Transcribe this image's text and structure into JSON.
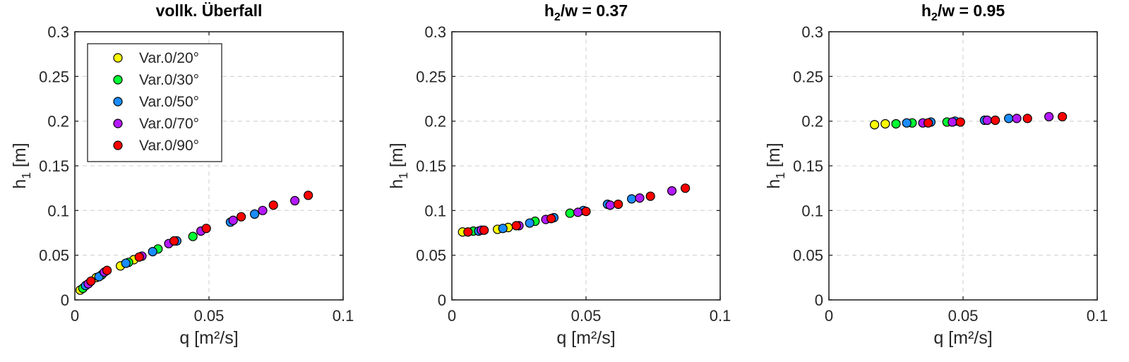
{
  "colors": {
    "Var.0/20°": "#ffff00",
    "Var.0/30°": "#00ff33",
    "Var.0/50°": "#1a8cff",
    "Var.0/70°": "#b319ff",
    "Var.0/90°": "#ff0000"
  },
  "chart_data": [
    {
      "type": "scatter",
      "title": "vollk. Überfall",
      "xlabel": "q [m²/s]",
      "ylabel": "h_1 [m]",
      "xlim": [
        0,
        0.1
      ],
      "ylim": [
        0,
        0.3
      ],
      "xticks": [
        "0",
        "0.05",
        "0.1"
      ],
      "yticks": [
        "0",
        "0.05",
        "0.1",
        "0.15",
        "0.2",
        "0.25",
        "0.3"
      ],
      "grid": true,
      "legend": "top-left",
      "series": [
        {
          "name": "Var.0/20°",
          "points": [
            [
              0.002,
              0.011
            ],
            [
              0.008,
              0.025
            ],
            [
              0.017,
              0.038
            ],
            [
              0.022,
              0.045
            ]
          ]
        },
        {
          "name": "Var.0/30°",
          "points": [
            [
              0.003,
              0.013
            ],
            [
              0.01,
              0.028
            ],
            [
              0.02,
              0.042
            ],
            [
              0.031,
              0.057
            ],
            [
              0.044,
              0.071
            ]
          ]
        },
        {
          "name": "Var.0/50°",
          "points": [
            [
              0.004,
              0.016
            ],
            [
              0.009,
              0.026
            ],
            [
              0.019,
              0.041
            ],
            [
              0.029,
              0.054
            ],
            [
              0.038,
              0.066
            ],
            [
              0.058,
              0.087
            ],
            [
              0.067,
              0.096
            ]
          ]
        },
        {
          "name": "Var.0/70°",
          "points": [
            [
              0.005,
              0.018
            ],
            [
              0.011,
              0.031
            ],
            [
              0.025,
              0.049
            ],
            [
              0.035,
              0.063
            ],
            [
              0.047,
              0.077
            ],
            [
              0.059,
              0.089
            ],
            [
              0.07,
              0.1
            ],
            [
              0.082,
              0.111
            ]
          ]
        },
        {
          "name": "Var.0/90°",
          "points": [
            [
              0.006,
              0.021
            ],
            [
              0.012,
              0.033
            ],
            [
              0.024,
              0.048
            ],
            [
              0.037,
              0.066
            ],
            [
              0.049,
              0.08
            ],
            [
              0.062,
              0.093
            ],
            [
              0.074,
              0.106
            ],
            [
              0.087,
              0.117
            ]
          ]
        }
      ]
    },
    {
      "type": "scatter",
      "title": "h_2/w = 0.37",
      "xlabel": "q [m²/s]",
      "ylabel": "h_1 [m]",
      "xlim": [
        0,
        0.1
      ],
      "ylim": [
        0,
        0.3
      ],
      "xticks": [
        "0",
        "0.05",
        "0.1"
      ],
      "yticks": [
        "0",
        "0.05",
        "0.1",
        "0.15",
        "0.2",
        "0.25",
        "0.3"
      ],
      "grid": true,
      "series": [
        {
          "name": "Var.0/20°",
          "points": [
            [
              0.004,
              0.076
            ],
            [
              0.017,
              0.079
            ],
            [
              0.021,
              0.081
            ]
          ]
        },
        {
          "name": "Var.0/30°",
          "points": [
            [
              0.008,
              0.077
            ],
            [
              0.031,
              0.088
            ],
            [
              0.044,
              0.097
            ]
          ]
        },
        {
          "name": "Var.0/50°",
          "points": [
            [
              0.01,
              0.077
            ],
            [
              0.019,
              0.08
            ],
            [
              0.029,
              0.086
            ],
            [
              0.038,
              0.092
            ],
            [
              0.049,
              0.1
            ],
            [
              0.058,
              0.107
            ],
            [
              0.067,
              0.113
            ]
          ]
        },
        {
          "name": "Var.0/70°",
          "points": [
            [
              0.011,
              0.078
            ],
            [
              0.025,
              0.083
            ],
            [
              0.035,
              0.09
            ],
            [
              0.047,
              0.098
            ],
            [
              0.059,
              0.106
            ],
            [
              0.07,
              0.114
            ],
            [
              0.082,
              0.122
            ]
          ]
        },
        {
          "name": "Var.0/90°",
          "points": [
            [
              0.006,
              0.076
            ],
            [
              0.012,
              0.078
            ],
            [
              0.024,
              0.083
            ],
            [
              0.037,
              0.091
            ],
            [
              0.05,
              0.099
            ],
            [
              0.062,
              0.107
            ],
            [
              0.074,
              0.116
            ],
            [
              0.087,
              0.125
            ]
          ]
        }
      ]
    },
    {
      "type": "scatter",
      "title": "h_2/w = 0.95",
      "xlabel": "q [m²/s]",
      "ylabel": "h_1 [m]",
      "xlim": [
        0,
        0.1
      ],
      "ylim": [
        0,
        0.3
      ],
      "xticks": [
        "0",
        "0.05",
        "0.1"
      ],
      "yticks": [
        "0",
        "0.05",
        "0.1",
        "0.15",
        "0.2",
        "0.25",
        "0.3"
      ],
      "grid": true,
      "series": [
        {
          "name": "Var.0/20°",
          "points": [
            [
              0.017,
              0.196
            ],
            [
              0.021,
              0.197
            ]
          ]
        },
        {
          "name": "Var.0/30°",
          "points": [
            [
              0.025,
              0.197
            ],
            [
              0.031,
              0.198
            ],
            [
              0.044,
              0.199
            ]
          ]
        },
        {
          "name": "Var.0/50°",
          "points": [
            [
              0.029,
              0.198
            ],
            [
              0.038,
              0.199
            ],
            [
              0.047,
              0.2
            ],
            [
              0.058,
              0.201
            ],
            [
              0.067,
              0.203
            ]
          ]
        },
        {
          "name": "Var.0/70°",
          "points": [
            [
              0.035,
              0.198
            ],
            [
              0.046,
              0.199
            ],
            [
              0.059,
              0.201
            ],
            [
              0.07,
              0.203
            ],
            [
              0.082,
              0.205
            ]
          ]
        },
        {
          "name": "Var.0/90°",
          "points": [
            [
              0.037,
              0.198
            ],
            [
              0.049,
              0.199
            ],
            [
              0.062,
              0.201
            ],
            [
              0.074,
              0.203
            ],
            [
              0.087,
              0.205
            ]
          ]
        }
      ]
    }
  ]
}
